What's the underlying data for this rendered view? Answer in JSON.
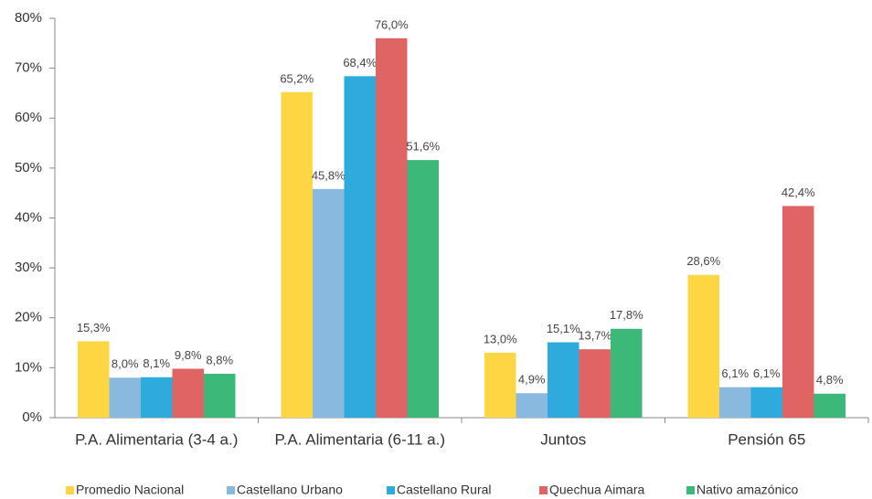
{
  "chart_data": {
    "type": "bar",
    "categories": [
      "P.A. Alimentaria (3-4 a.)",
      "P.A. Alimentaria (6-11 a.)",
      "Juntos",
      "Pensión 65"
    ],
    "series": [
      {
        "name": "Promedio Nacional",
        "color": "#fdd644",
        "values": [
          15.3,
          65.2,
          13.0,
          28.6
        ],
        "value_labels": [
          "15,3%",
          "65,2%",
          "13,0%",
          "28,6%"
        ]
      },
      {
        "name": "Castellano Urbano",
        "color": "#8ab9e0",
        "values": [
          8.0,
          45.8,
          4.9,
          6.1
        ],
        "value_labels": [
          "8,0%",
          "45,8%",
          "4,9%",
          "6,1%"
        ]
      },
      {
        "name": "Castellano Rural",
        "color": "#2eaadc",
        "values": [
          8.1,
          68.4,
          15.1,
          6.1
        ],
        "value_labels": [
          "8,1%",
          "68,4%",
          "15,1%",
          "6,1%"
        ]
      },
      {
        "name": "Quechua Aimara",
        "color": "#e06464",
        "values": [
          9.8,
          76.0,
          13.7,
          42.4
        ],
        "value_labels": [
          "9,8%",
          "76,0%",
          "13,7%",
          "42,4%"
        ]
      },
      {
        "name": "Nativo amazónico",
        "color": "#3cb878",
        "values": [
          8.8,
          51.6,
          17.8,
          4.8
        ],
        "value_labels": [
          "8,8%",
          "51,6%",
          "17,8%",
          "4,8%"
        ]
      }
    ],
    "ylim": [
      0,
      80
    ],
    "yticks": [
      {
        "value": 0,
        "label": "0%"
      },
      {
        "value": 10,
        "label": "10%"
      },
      {
        "value": 20,
        "label": "20%"
      },
      {
        "value": 30,
        "label": "30%"
      },
      {
        "value": 40,
        "label": "40%"
      },
      {
        "value": 50,
        "label": "50%"
      },
      {
        "value": 60,
        "label": "60%"
      },
      {
        "value": 70,
        "label": "70%"
      },
      {
        "value": 80,
        "label": "80%"
      }
    ],
    "legend": "bottom"
  }
}
